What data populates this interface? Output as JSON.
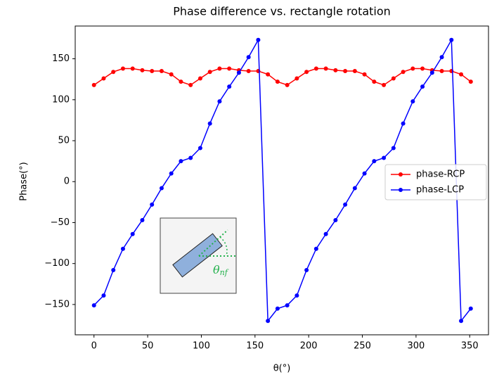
{
  "chart_data": {
    "type": "line",
    "title": "Phase difference vs. rectangle rotation",
    "x_label": "θ(°)",
    "y_label": "Phase(°)",
    "annotation": "θ",
    "annotation_sub": "nf",
    "x": [
      0,
      9,
      18,
      27,
      36,
      45,
      54,
      63,
      72,
      81,
      90,
      99,
      108,
      117,
      126,
      135,
      144,
      153,
      162,
      171,
      180,
      189,
      198,
      207,
      216,
      225,
      234,
      243,
      252,
      261,
      270,
      279,
      288,
      297,
      306,
      315,
      324,
      333,
      342,
      351
    ],
    "series": [
      {
        "name": "phase-RCP",
        "color": "#ff0000",
        "values": [
          118,
          126,
          134,
          138,
          138,
          136,
          135,
          135,
          131,
          122,
          118,
          126,
          134,
          138,
          138,
          136,
          135,
          135,
          131,
          122,
          118,
          126,
          134,
          138,
          138,
          136,
          135,
          135,
          131,
          122,
          118,
          126,
          134,
          138,
          138,
          136,
          135,
          135,
          131,
          122
        ]
      },
      {
        "name": "phase-LCP",
        "color": "#0000ff",
        "values": [
          -151,
          -139,
          -108,
          -82,
          -64,
          -47,
          -28,
          -8,
          10,
          25,
          29,
          41,
          71,
          98,
          116,
          133,
          152,
          173,
          -170,
          -155,
          -151,
          -139,
          -108,
          -82,
          -64,
          -47,
          -28,
          -8,
          10,
          25,
          29,
          41,
          71,
          98,
          116,
          133,
          152,
          173,
          -170,
          -155
        ]
      }
    ],
    "xlim": [
      -17.5,
      367.5
    ],
    "ylim": [
      -187,
      190
    ],
    "xticks": [
      0,
      50,
      100,
      150,
      200,
      250,
      300,
      350
    ],
    "yticks": [
      {
        "value": -150,
        "label": "−150"
      },
      {
        "value": -100,
        "label": "−100"
      },
      {
        "value": -50,
        "label": "−50"
      },
      0,
      50,
      100,
      150
    ],
    "grid": false,
    "legend": "right"
  }
}
